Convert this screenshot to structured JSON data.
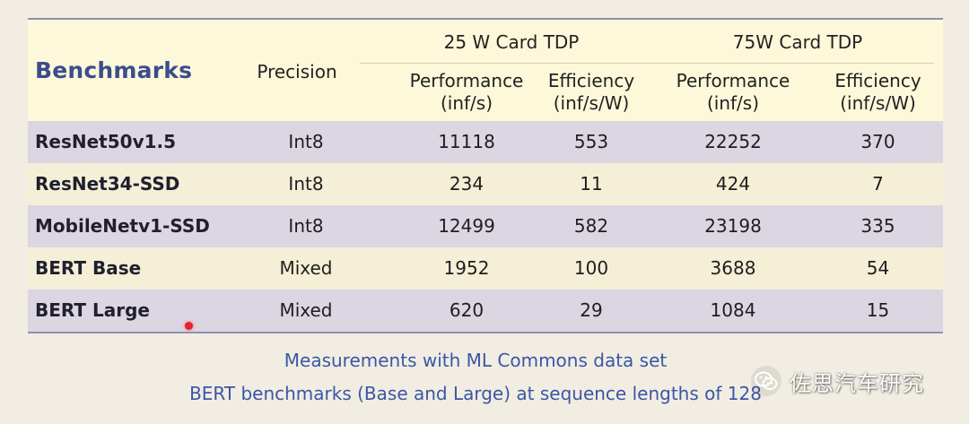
{
  "table": {
    "first_col_header": "Benchmarks",
    "precision_header": "Precision",
    "groups": [
      {
        "label": "25 W Card TDP",
        "perf_label": "Performance",
        "perf_unit": "(inf/s)",
        "eff_label": "Efficiency",
        "eff_unit": "(inf/s/W)"
      },
      {
        "label": "75W Card TDP",
        "perf_label": "Performance",
        "perf_unit": "(inf/s)",
        "eff_label": "Efficiency",
        "eff_unit": "(inf/s/W)"
      }
    ],
    "rows": [
      {
        "name": "ResNet50v1.5",
        "precision": "Int8",
        "p25": "11118",
        "e25": "553",
        "p75": "22252",
        "e75": "370"
      },
      {
        "name": "ResNet34-SSD",
        "precision": "Int8",
        "p25": "234",
        "e25": "11",
        "p75": "424",
        "e75": "7"
      },
      {
        "name": "MobileNetv1-SSD",
        "precision": "Int8",
        "p25": "12499",
        "e25": "582",
        "p75": "23198",
        "e75": "335"
      },
      {
        "name": "BERT Base",
        "precision": "Mixed",
        "p25": "1952",
        "e25": "100",
        "p75": "3688",
        "e75": "54"
      },
      {
        "name": "BERT Large",
        "precision": "Mixed",
        "p25": "620",
        "e25": "29",
        "p75": "1084",
        "e75": "15"
      }
    ]
  },
  "footnotes": [
    "Measurements with ML Commons data set",
    "BERT benchmarks (Base and Large) at sequence lengths of 128"
  ],
  "watermark": {
    "text": "佐思汽车研究",
    "icon": "wechat-icon"
  },
  "colors": {
    "header_bg": "#fdf8d9",
    "title_blue": "#3b4d8e",
    "row_purple": "#dcd5e2",
    "row_cream": "#f4efd6",
    "footnote_blue": "#3b56a6",
    "border": "#8e8fb0",
    "cursor_red": "#e0232f"
  }
}
